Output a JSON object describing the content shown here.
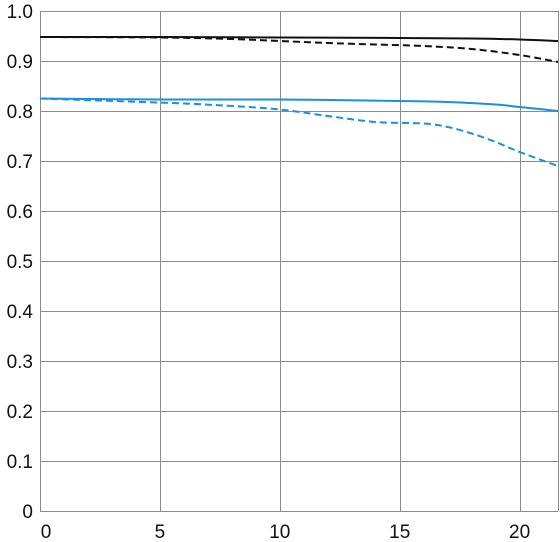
{
  "chart_data": {
    "type": "line",
    "title": "",
    "xlabel": "",
    "ylabel": "",
    "xlim": [
      0,
      21.6
    ],
    "ylim": [
      0,
      1.0
    ],
    "grid": true,
    "legend": "none",
    "x_ticks": [
      0,
      5,
      10,
      15,
      20
    ],
    "x_tick_labels": [
      "0",
      "5",
      "10",
      "15",
      "20"
    ],
    "y_ticks": [
      0,
      0.1,
      0.2,
      0.3,
      0.4,
      0.5,
      0.6,
      0.7,
      0.8,
      0.9,
      1.0
    ],
    "y_tick_labels": [
      "0",
      "0.1",
      "0.2",
      "0.3",
      "0.4",
      "0.5",
      "0.6",
      "0.7",
      "0.8",
      "0.9",
      "1.0"
    ],
    "series": [
      {
        "color": "#111111",
        "dash": "solid",
        "points": [
          [
            0,
            0.948
          ],
          [
            5,
            0.948
          ],
          [
            10,
            0.947
          ],
          [
            15,
            0.946
          ],
          [
            18,
            0.945
          ],
          [
            20,
            0.943
          ],
          [
            21.6,
            0.94
          ]
        ]
      },
      {
        "color": "#111111",
        "dash": "dashed",
        "points": [
          [
            0,
            0.948
          ],
          [
            5,
            0.947
          ],
          [
            8,
            0.944
          ],
          [
            10,
            0.94
          ],
          [
            12,
            0.936
          ],
          [
            14,
            0.933
          ],
          [
            16,
            0.93
          ],
          [
            18,
            0.924
          ],
          [
            20,
            0.912
          ],
          [
            21.6,
            0.898
          ]
        ]
      },
      {
        "color": "#1a8fe3",
        "dash": "solid",
        "points": [
          [
            0,
            0.825
          ],
          [
            5,
            0.823
          ],
          [
            10,
            0.823
          ],
          [
            15,
            0.82
          ],
          [
            17,
            0.818
          ],
          [
            19,
            0.813
          ],
          [
            20,
            0.808
          ],
          [
            21.6,
            0.8
          ]
        ]
      },
      {
        "color": "#1a8fe3",
        "dash": "dashed",
        "points": [
          [
            0,
            0.825
          ],
          [
            3,
            0.82
          ],
          [
            6,
            0.815
          ],
          [
            8,
            0.81
          ],
          [
            10,
            0.803
          ],
          [
            12,
            0.79
          ],
          [
            14,
            0.778
          ],
          [
            16,
            0.775
          ],
          [
            17,
            0.768
          ],
          [
            18,
            0.755
          ],
          [
            19,
            0.738
          ],
          [
            20,
            0.718
          ],
          [
            21.6,
            0.69
          ]
        ]
      }
    ]
  }
}
